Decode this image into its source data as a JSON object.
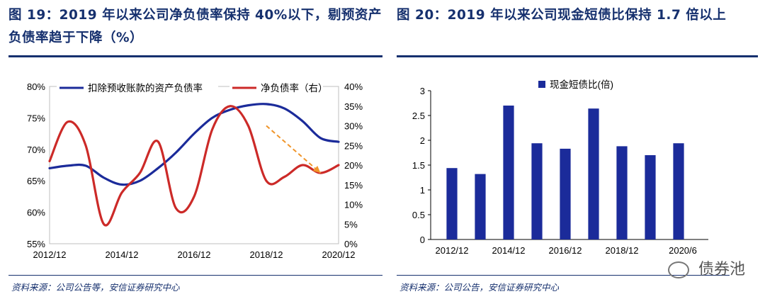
{
  "left": {
    "title_line1": "图 19：2019 年以来公司净负债率保持 40%以下，剔预资产",
    "title_line2": "负债率趋于下降（%）",
    "source": "资料来源：公司公告等，安信证券研究中心",
    "chart_data": {
      "type": "line",
      "x": [
        "2012/12",
        "2013/06",
        "2013/12",
        "2014/06",
        "2014/12",
        "2015/06",
        "2015/12",
        "2016/06",
        "2016/12",
        "2017/06",
        "2017/12",
        "2018/06",
        "2018/12",
        "2019/06",
        "2019/12",
        "2020/06",
        "2020/12"
      ],
      "x_tick_labels": [
        "2012/12",
        "2014/12",
        "2016/12",
        "2018/12",
        "2020/12"
      ],
      "series": [
        {
          "name": "扣除预收账款的资产负债率",
          "axis": "left",
          "color": "#1b2b9a",
          "values": [
            67.0,
            67.4,
            67.4,
            65.5,
            64.4,
            65.0,
            67.0,
            69.5,
            72.5,
            75.0,
            76.3,
            77.0,
            77.2,
            76.5,
            74.5,
            71.8,
            71.2
          ]
        },
        {
          "name": "净负债率（右）",
          "axis": "right",
          "color": "#cc2a28",
          "values": [
            21,
            31,
            25,
            5,
            13,
            18,
            26,
            9,
            12,
            29,
            35,
            30,
            16,
            17,
            20,
            18,
            20
          ]
        }
      ],
      "y_left": {
        "min": 55,
        "max": 80,
        "ticks": [
          "55%",
          "60%",
          "65%",
          "70%",
          "75%",
          "80%"
        ]
      },
      "y_right": {
        "min": 0,
        "max": 40,
        "ticks": [
          "0%",
          "5%",
          "10%",
          "15%",
          "20%",
          "25%",
          "30%",
          "35%",
          "40%"
        ]
      },
      "legend_position": "top",
      "annotation": {
        "type": "dashed-arrow",
        "color": "#f0952a",
        "from": [
          "2018/12",
          30
        ],
        "to": [
          "2020/06",
          18
        ]
      }
    }
  },
  "right": {
    "title": "图 20：2019 年以来公司现金短债比保持 1.7 倍以上",
    "source": "资料来源：公司公告，安信证券研究中心",
    "chart_data": {
      "type": "bar",
      "categories": [
        "2012/12",
        "2013/12",
        "2014/12",
        "2015/12",
        "2016/12",
        "2017/12",
        "2018/12",
        "2019/12",
        "2020/6"
      ],
      "x_tick_labels": [
        "2012/12",
        "2014/12",
        "2016/12",
        "2018/12",
        "2020/6"
      ],
      "series": [
        {
          "name": "现金短债比(倍)",
          "color": "#1b2b9a",
          "values": [
            1.44,
            1.32,
            2.7,
            1.94,
            1.83,
            2.64,
            1.88,
            1.7,
            1.94
          ]
        }
      ],
      "ylim": [
        0,
        3
      ],
      "y_ticks": [
        "0",
        "0.5",
        "1",
        "1.5",
        "2",
        "2.5",
        "3"
      ],
      "legend_position": "top"
    }
  },
  "watermark": "债券池"
}
